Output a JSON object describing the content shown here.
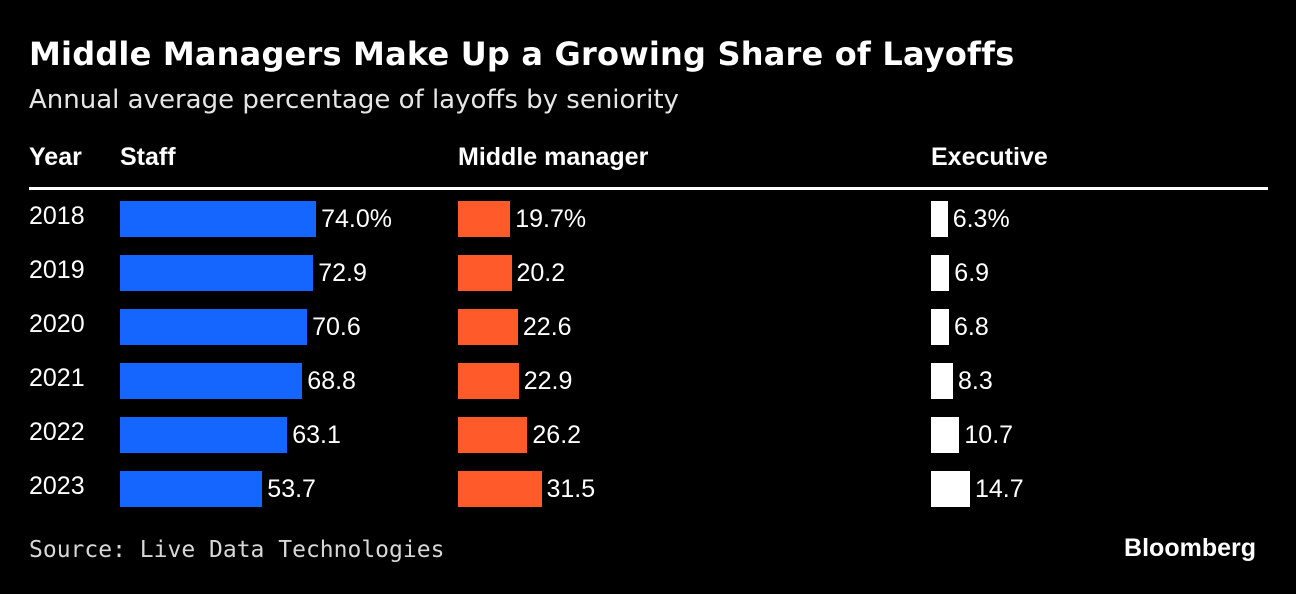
{
  "title": "Middle Managers Make Up a Growing Share of Layoffs",
  "subtitle": "Annual average percentage of layoffs by seniority",
  "columns": {
    "year": "Year",
    "staff": "Staff",
    "middle": "Middle manager",
    "executive": "Executive"
  },
  "source": "Source: Live Data Technologies",
  "brand": "Bloomberg",
  "colors": {
    "background": "#000000",
    "staff": "#1466ff",
    "middle": "#ff5a2a",
    "executive": "#ffffff",
    "text": "#ffffff"
  },
  "chart_data": {
    "type": "bar",
    "categories": [
      "2018",
      "2019",
      "2020",
      "2021",
      "2022",
      "2023"
    ],
    "series": [
      {
        "name": "Staff",
        "values": [
          74.0,
          72.9,
          70.6,
          68.8,
          63.1,
          53.7
        ],
        "labels": [
          "74.0%",
          "72.9",
          "70.6",
          "68.8",
          "63.1",
          "53.7"
        ]
      },
      {
        "name": "Middle manager",
        "values": [
          19.7,
          20.2,
          22.6,
          22.9,
          26.2,
          31.5
        ],
        "labels": [
          "19.7%",
          "20.2",
          "22.6",
          "22.9",
          "26.2",
          "31.5"
        ]
      },
      {
        "name": "Executive",
        "values": [
          6.3,
          6.9,
          6.8,
          8.3,
          10.7,
          14.7
        ],
        "labels": [
          "6.3%",
          "6.9",
          "6.8",
          "8.3",
          "10.7",
          "14.7"
        ]
      }
    ],
    "xlabel": "",
    "ylabel": "",
    "grid": false
  }
}
